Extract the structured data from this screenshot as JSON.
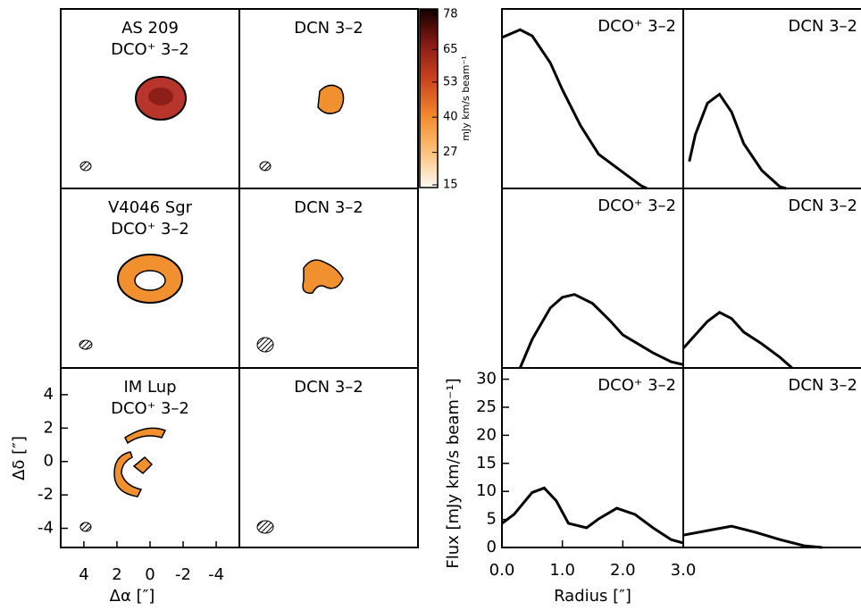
{
  "chart_data": [
    {
      "type": "image",
      "panels": [
        {
          "source": "AS 209",
          "line": "DCO⁺ 3–2"
        },
        {
          "line": "DCN 3–2"
        },
        {
          "source": "V4046 Sgr",
          "line": "DCO⁺ 3–2"
        },
        {
          "line": "DCN 3–2"
        },
        {
          "source": "IM Lup",
          "line": "DCO⁺ 3–2"
        },
        {
          "line": "DCN 3–2"
        }
      ],
      "xlim": [
        5.4,
        -5.4
      ],
      "ylim": [
        -5.2,
        5.6
      ],
      "xticks": [
        4,
        2,
        0,
        -2,
        -4
      ],
      "yticks": [
        4,
        2,
        0,
        -2,
        -4
      ],
      "xlabel": "Δα [″]",
      "ylabel": "Δδ [″]",
      "colorbar": {
        "lim": [
          14,
          80
        ],
        "ticks": [
          15,
          27,
          40,
          53,
          65,
          78
        ],
        "label": "mJy km/s beam⁻¹"
      }
    },
    {
      "type": "line",
      "title": "DCO⁺ 3–2",
      "color": "#000000",
      "xlim": [
        0,
        3
      ],
      "ylim": [
        0,
        32
      ],
      "x": [
        0,
        0.3,
        0.5,
        0.8,
        1.0,
        1.3,
        1.6,
        2.0,
        2.3,
        2.4
      ],
      "values": [
        26.9,
        28.3,
        27.2,
        22.4,
        17.6,
        11.2,
        6.1,
        2.9,
        0.5,
        0
      ]
    },
    {
      "type": "line",
      "title": "DCN 3–2",
      "color": "#000000",
      "xlim": [
        0,
        3
      ],
      "ylim": [
        0,
        32
      ],
      "x": [
        0.1,
        0.2,
        0.4,
        0.6,
        0.8,
        1.0,
        1.3,
        1.6,
        1.7
      ],
      "values": [
        4.8,
        9.6,
        15.2,
        16.8,
        13.6,
        8,
        3.2,
        0.3,
        0
      ]
    },
    {
      "type": "line",
      "title": "DCO⁺ 3–2",
      "color": "#000000",
      "xlim": [
        0,
        3
      ],
      "ylim": [
        0,
        32
      ],
      "x": [
        0.3,
        0.5,
        0.8,
        1.0,
        1.2,
        1.5,
        1.8,
        2.0,
        2.5,
        2.8,
        3.0
      ],
      "values": [
        0,
        5.1,
        10.7,
        12.6,
        13.1,
        11.5,
        8.3,
        5.9,
        2.7,
        1.1,
        0.6
      ]
    },
    {
      "type": "line",
      "title": "DCN 3–2",
      "color": "#000000",
      "xlim": [
        0,
        3
      ],
      "ylim": [
        0,
        32
      ],
      "x": [
        0,
        0.4,
        0.6,
        0.8,
        1.0,
        1.3,
        1.6,
        1.8
      ],
      "values": [
        3.5,
        8.3,
        9.9,
        8.8,
        6.4,
        4.3,
        1.9,
        0
      ]
    },
    {
      "type": "line",
      "title": "DCO⁺ 3–2",
      "color": "#000000",
      "xlim": [
        0,
        3
      ],
      "ylim": [
        0,
        32
      ],
      "x": [
        0,
        0.2,
        0.5,
        0.7,
        0.9,
        1.1,
        1.4,
        1.6,
        1.9,
        2.2,
        2.5,
        2.8,
        3.0
      ],
      "values": [
        4.3,
        5.9,
        9.8,
        10.6,
        8.3,
        4.3,
        3.5,
        5.1,
        7,
        5.9,
        3.5,
        1.4,
        0.8
      ],
      "xticks": [
        {
          "value": 0,
          "label": "0.0"
        },
        {
          "value": 1,
          "label": "1.0"
        },
        {
          "value": 2,
          "label": "2.0"
        },
        {
          "value": 3,
          "label": "3.0"
        }
      ],
      "yticks": [
        0,
        5,
        10,
        15,
        20,
        25,
        30
      ],
      "xlabel": "Radius [″]",
      "ylabel": "Flux [mJy km/s beam⁻¹]"
    },
    {
      "type": "line",
      "title": "DCN 3–2",
      "color": "#000000",
      "xlim": [
        0,
        3
      ],
      "ylim": [
        0,
        32
      ],
      "x": [
        0,
        0.5,
        0.8,
        1.2,
        1.6,
        2.0,
        2.3
      ],
      "values": [
        2.2,
        3.2,
        3.8,
        2.7,
        1.4,
        0.3,
        0
      ]
    }
  ]
}
